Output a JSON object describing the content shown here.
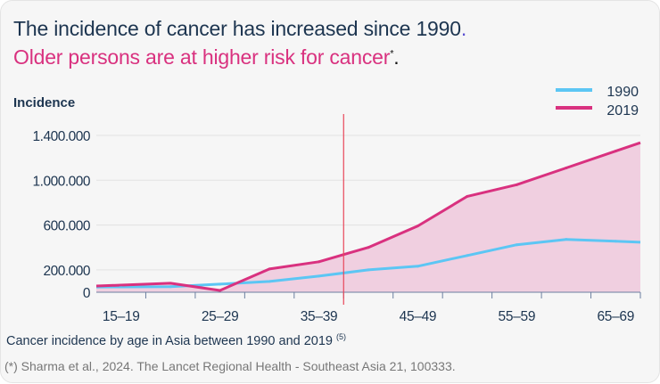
{
  "header": {
    "title": "The incidence of cancer has increased since 1990",
    "title_end": ".",
    "subtitle": "Older persons are at higher risk for cancer",
    "subtitle_mark": "*",
    "subtitle_end": "."
  },
  "caption": {
    "text": "Cancer incidence by age in Asia between 1990 and 2019 ",
    "ref": "(5)"
  },
  "source": "(*) Sharma et al., 2024. The Lancet Regional Health - Southeast Asia 21, 100333.",
  "colors": {
    "series_1990": "#5cc6f4",
    "series_2019": "#d9317f",
    "fill_2019": "#f0cfe0",
    "marker_line": "#e8475a",
    "text": "#1d3550"
  },
  "chart_data": {
    "type": "area",
    "ylabel": "Incidence",
    "y_tick_labels": [
      "0",
      "200.000",
      "600.000",
      "1.000.000",
      "1.400.000"
    ],
    "y_ticks": [
      0,
      200000,
      600000,
      1000000,
      1400000
    ],
    "ylim": [
      0,
      1400000
    ],
    "x_tick_labels": [
      "15–19",
      "25–29",
      "35–39",
      "45–49",
      "55–59",
      "65–69"
    ],
    "grid": true,
    "legend": "top-right",
    "marker_line_between": [
      "35–39",
      "40–44"
    ],
    "series": [
      {
        "name": "1990",
        "values": [
          48000,
          50000,
          72000,
          96000,
          144000,
          200000,
          232000,
          328000,
          424000,
          472000,
          455000
        ]
      },
      {
        "name": "2019",
        "values": [
          64000,
          80000,
          16000,
          208000,
          272000,
          400000,
          592000,
          856000,
          960000,
          1110000,
          1260000
        ]
      }
    ]
  }
}
